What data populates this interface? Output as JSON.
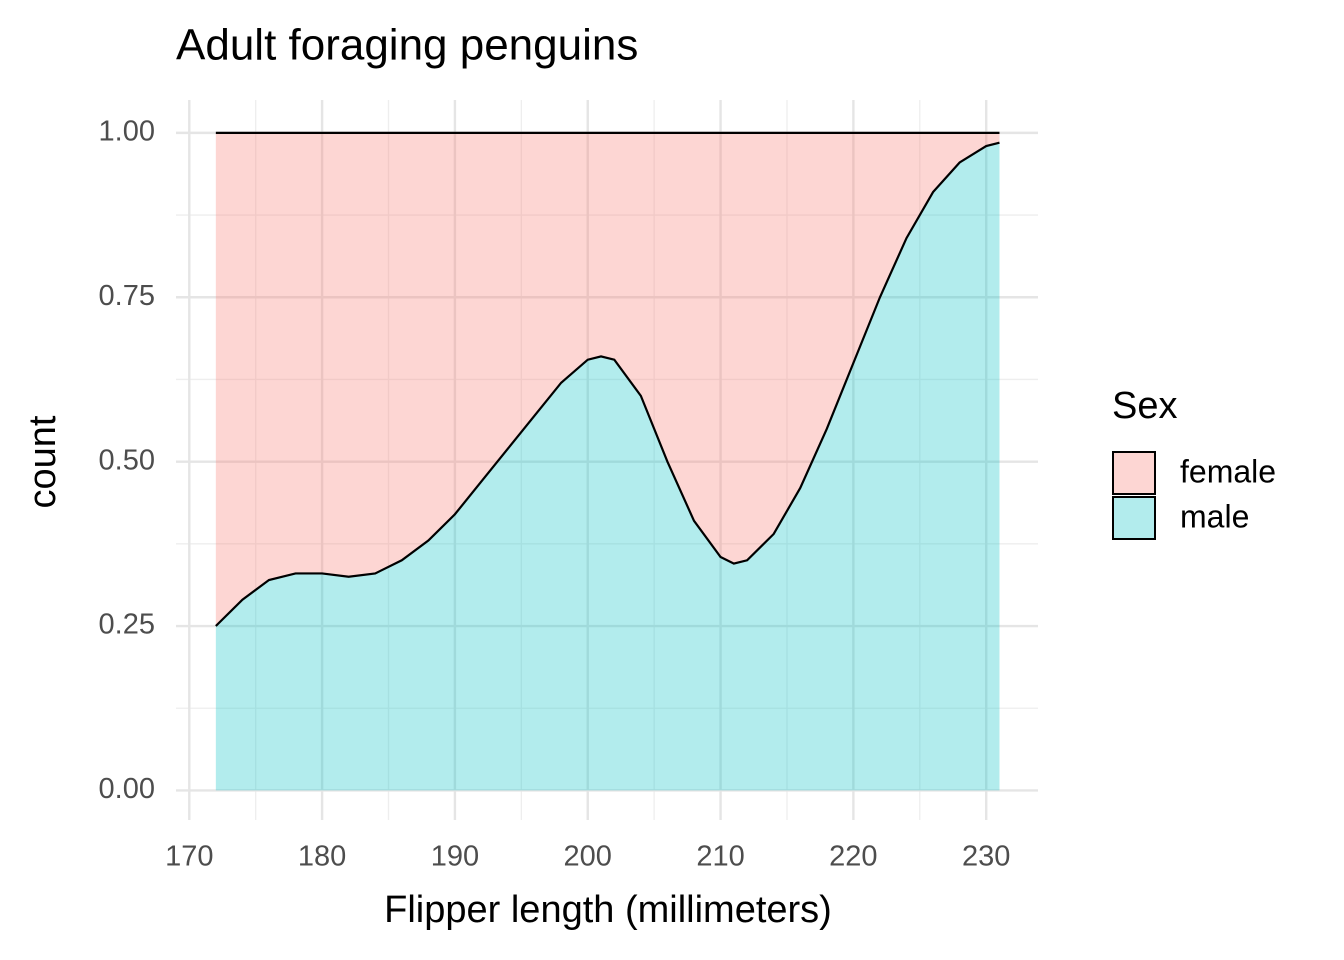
{
  "chart_data": {
    "type": "area",
    "stacked": "fill",
    "title": "Adult foraging penguins",
    "x_label": "Flipper length (millimeters)",
    "y_label": "count",
    "legend_title": "Sex",
    "x": [
      172,
      174,
      176,
      178,
      180,
      182,
      184,
      186,
      188,
      190,
      192,
      194,
      196,
      198,
      200,
      201,
      202,
      204,
      206,
      208,
      210,
      211,
      212,
      214,
      216,
      218,
      220,
      222,
      224,
      226,
      228,
      230,
      231
    ],
    "series": [
      {
        "name": "male",
        "color": "#00bfc4",
        "values": [
          0.25,
          0.29,
          0.32,
          0.33,
          0.33,
          0.325,
          0.33,
          0.35,
          0.38,
          0.42,
          0.47,
          0.52,
          0.57,
          0.62,
          0.655,
          0.66,
          0.655,
          0.6,
          0.5,
          0.41,
          0.355,
          0.345,
          0.35,
          0.39,
          0.46,
          0.55,
          0.65,
          0.75,
          0.84,
          0.91,
          0.955,
          0.98,
          0.985
        ]
      },
      {
        "name": "female",
        "color": "#f8766d",
        "values": [
          0.75,
          0.71,
          0.68,
          0.67,
          0.67,
          0.675,
          0.67,
          0.65,
          0.62,
          0.58,
          0.53,
          0.48,
          0.43,
          0.38,
          0.345,
          0.34,
          0.345,
          0.4,
          0.5,
          0.59,
          0.645,
          0.655,
          0.65,
          0.61,
          0.54,
          0.45,
          0.35,
          0.25,
          0.16,
          0.09,
          0.045,
          0.02,
          0.015
        ]
      }
    ],
    "legend_order": [
      "female",
      "male"
    ],
    "xlim": [
      169.0,
      233.9
    ],
    "ylim": [
      -0.045,
      1.05
    ],
    "xticks": [
      170,
      180,
      190,
      200,
      210,
      220,
      230
    ],
    "yticks": [
      {
        "value": 0,
        "label": "0.00"
      },
      0.25,
      {
        "value": 0.5,
        "label": "0.50"
      },
      0.75,
      {
        "value": 1,
        "label": "1.00"
      }
    ],
    "grid": true,
    "legend_position": "right"
  }
}
